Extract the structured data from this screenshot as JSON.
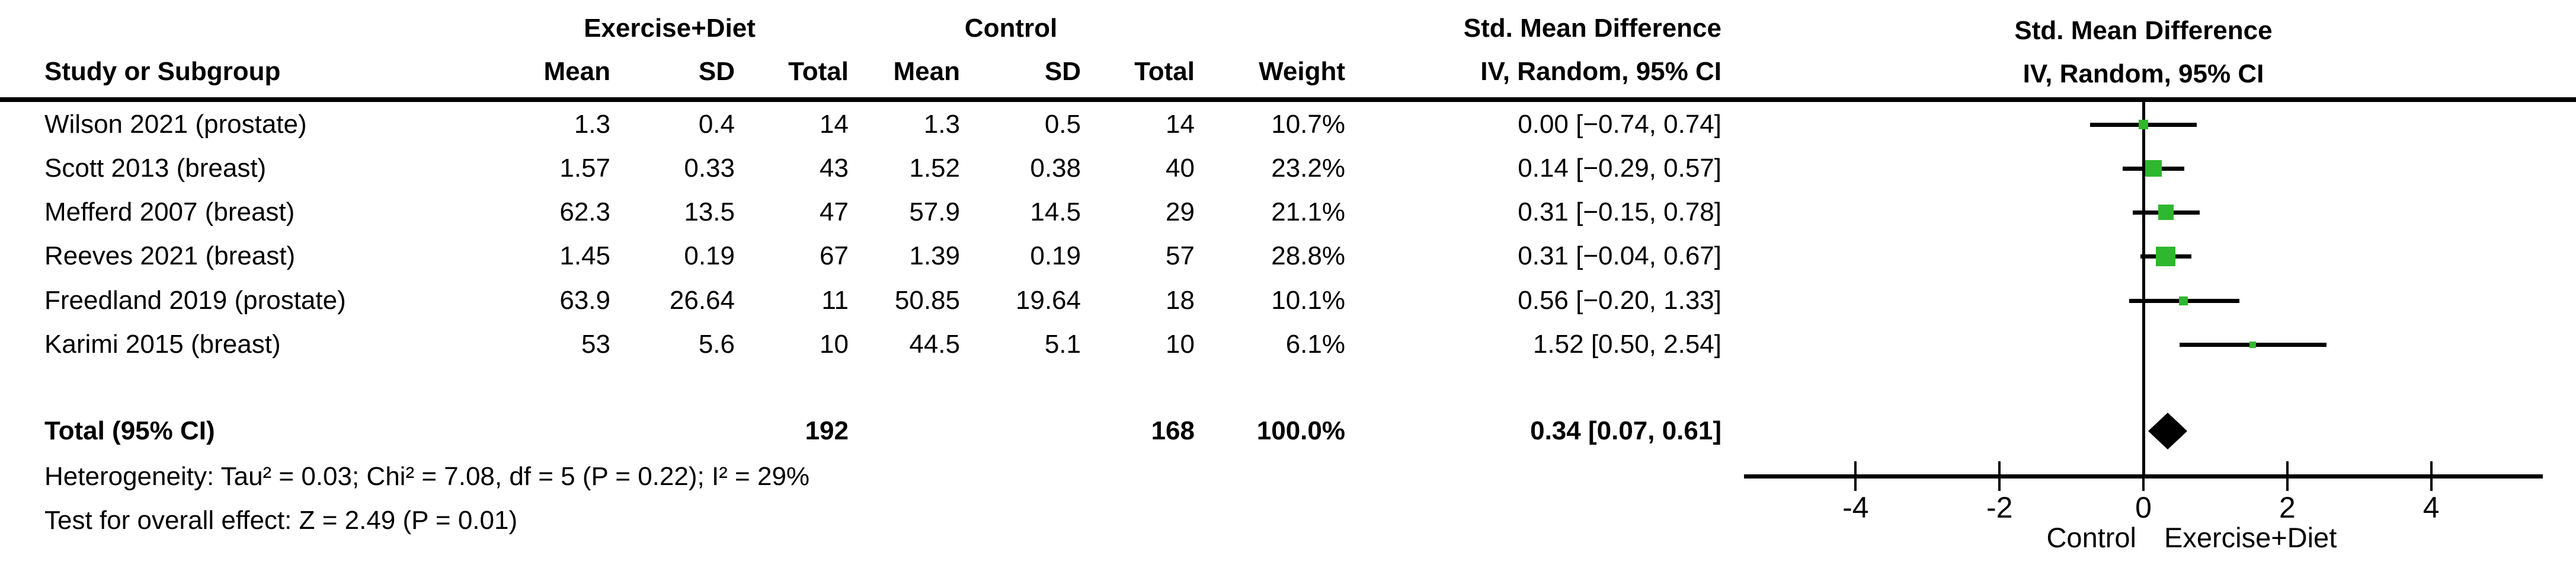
{
  "table": {
    "study_col_header": "Study or Subgroup",
    "group_exercise": "Exercise+Diet",
    "group_control": "Control",
    "effect_header_line1": "Std. Mean Difference",
    "effect_header_line2": "IV, Random, 95% CI",
    "subheaders": {
      "mean": "Mean",
      "sd": "SD",
      "total": "Total",
      "weight": "Weight"
    },
    "rows": [
      {
        "study": "Wilson 2021 (prostate)",
        "ed_mean": "1.3",
        "ed_sd": "0.4",
        "ed_total": "14",
        "c_mean": "1.3",
        "c_sd": "0.5",
        "c_total": "14",
        "weight": "10.7%",
        "ci": "0.00 [−0.74, 0.74]"
      },
      {
        "study": "Scott 2013 (breast)",
        "ed_mean": "1.57",
        "ed_sd": "0.33",
        "ed_total": "43",
        "c_mean": "1.52",
        "c_sd": "0.38",
        "c_total": "40",
        "weight": "23.2%",
        "ci": "0.14 [−0.29, 0.57]"
      },
      {
        "study": "Mefferd 2007 (breast)",
        "ed_mean": "62.3",
        "ed_sd": "13.5",
        "ed_total": "47",
        "c_mean": "57.9",
        "c_sd": "14.5",
        "c_total": "29",
        "weight": "21.1%",
        "ci": "0.31 [−0.15, 0.78]"
      },
      {
        "study": "Reeves 2021 (breast)",
        "ed_mean": "1.45",
        "ed_sd": "0.19",
        "ed_total": "67",
        "c_mean": "1.39",
        "c_sd": "0.19",
        "c_total": "57",
        "weight": "28.8%",
        "ci": "0.31 [−0.04, 0.67]"
      },
      {
        "study": "Freedland 2019 (prostate)",
        "ed_mean": "63.9",
        "ed_sd": "26.64",
        "ed_total": "11",
        "c_mean": "50.85",
        "c_sd": "19.64",
        "c_total": "18",
        "weight": "10.1%",
        "ci": "0.56 [−0.20, 1.33]"
      },
      {
        "study": "Karimi 2015 (breast)",
        "ed_mean": "53",
        "ed_sd": "5.6",
        "ed_total": "10",
        "c_mean": "44.5",
        "c_sd": "5.1",
        "c_total": "10",
        "weight": "6.1%",
        "ci": "1.52 [0.50, 2.54]"
      }
    ],
    "total_row": {
      "label": "Total (95% CI)",
      "ed_total": "192",
      "c_total": "168",
      "weight": "100.0%",
      "ci": "0.34 [0.07, 0.61]"
    }
  },
  "footer": {
    "heterogeneity": "Heterogeneity: Tau² = 0.03; Chi² = 7.08, df = 5 (P = 0.22); I² = 29%",
    "overall_effect": "Test for overall effect: Z = 2.49 (P = 0.01)"
  },
  "chart_data": {
    "type": "forest",
    "title": "Std. Mean Difference",
    "model": "IV, Random, 95% CI",
    "xlim": [
      -5.55,
      5.55
    ],
    "ticks": [
      -4,
      -2,
      0,
      2,
      4
    ],
    "tick_labels": [
      "-4",
      "-2",
      "0",
      "2",
      "4"
    ],
    "axis_left_label": "Control",
    "axis_right_label": "Exercise+Diet",
    "grid": false,
    "studies": [
      {
        "name": "Wilson 2021 (prostate)",
        "est": 0.0,
        "lo": -0.74,
        "hi": 0.74,
        "weight_pct": 10.7
      },
      {
        "name": "Scott 2013 (breast)",
        "est": 0.14,
        "lo": -0.29,
        "hi": 0.57,
        "weight_pct": 23.2
      },
      {
        "name": "Mefferd 2007 (breast)",
        "est": 0.31,
        "lo": -0.15,
        "hi": 0.78,
        "weight_pct": 21.1
      },
      {
        "name": "Reeves 2021 (breast)",
        "est": 0.31,
        "lo": -0.04,
        "hi": 0.67,
        "weight_pct": 28.8
      },
      {
        "name": "Freedland 2019 (prostate)",
        "est": 0.56,
        "lo": -0.2,
        "hi": 1.33,
        "weight_pct": 10.1
      },
      {
        "name": "Karimi 2015 (breast)",
        "est": 1.52,
        "lo": 0.5,
        "hi": 2.54,
        "weight_pct": 6.1
      }
    ],
    "total": {
      "label": "Total (95% CI)",
      "est": 0.34,
      "lo": 0.07,
      "hi": 0.61,
      "weight_pct": 100.0
    }
  },
  "colors": {
    "marker_green": "#2eb82e",
    "line_black": "#000000",
    "diamond_black": "#000000",
    "text_black": "#000000"
  }
}
